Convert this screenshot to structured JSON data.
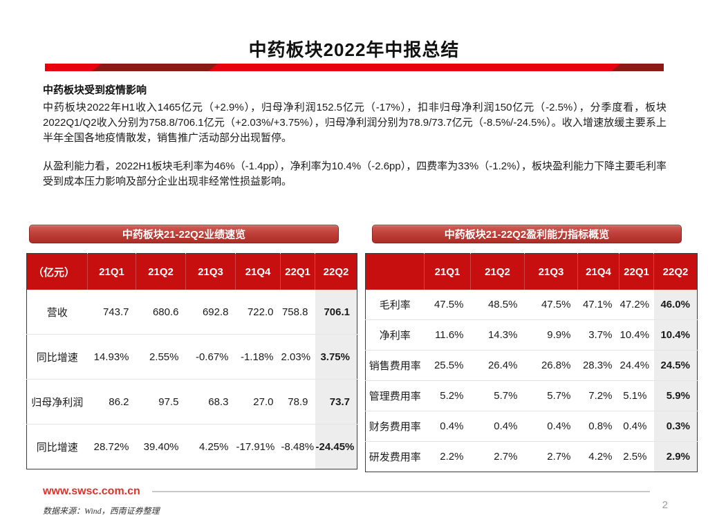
{
  "page": {
    "title": "中药板块2022年中报总结",
    "page_number": "2"
  },
  "body": {
    "heading": "中药板块受到疫情影响",
    "paragraph1": "中药板块2022年H1收入1465亿元（+2.9%），归母净利润152.5亿元（-17%），扣非归母净利润150亿元（-2.5%），分季度看，板块2022Q1/Q2收入分别为758.8/706.1亿元（+2.03%/+3.75%），归母净利润分别为78.9/73.7亿元（-8.5%/-24.5%）。收入增速放缓主要系上半年全国各地疫情散发，销售推广活动部分出现暂停。",
    "paragraph2": "从盈利能力看，2022H1板块毛利率为46%（-1.4pp），净利率为10.4%（-2.6pp），四费率为33%（-1.2%），板块盈利能力下降主要毛利率受到成本压力影响及部分企业出现非经常性损益影响。"
  },
  "left_panel": {
    "button_label": "中药板块21-22Q2业绩速览",
    "table": {
      "header": [
        "（亿元）",
        "21Q1",
        "21Q2",
        "21Q3",
        "21Q4",
        "22Q1",
        "22Q2"
      ],
      "rows": [
        {
          "label": "营收",
          "values": [
            "743.7",
            "680.6",
            "692.8",
            "722.0",
            "758.8",
            "706.1"
          ]
        },
        {
          "label": "同比增速",
          "values": [
            "14.93%",
            "2.55%",
            "-0.67%",
            "-1.18%",
            "2.03%",
            "3.75%"
          ]
        },
        {
          "label": "归母净利润",
          "values": [
            "86.2",
            "97.5",
            "68.3",
            "27.0",
            "78.9",
            "73.7"
          ]
        },
        {
          "label": "同比增速",
          "values": [
            "28.72%",
            "39.40%",
            "4.25%",
            "-17.91%",
            "-8.48%",
            "-24.45%"
          ]
        }
      ]
    }
  },
  "right_panel": {
    "button_label": "中药板块21-22Q2盈利能力指标概览",
    "table": {
      "header": [
        "",
        "21Q1",
        "21Q2",
        "21Q3",
        "21Q4",
        "22Q1",
        "22Q2"
      ],
      "rows": [
        {
          "label": "毛利率",
          "values": [
            "47.5%",
            "48.5%",
            "47.5%",
            "47.1%",
            "47.2%",
            "46.0%"
          ]
        },
        {
          "label": "净利率",
          "values": [
            "11.6%",
            "14.3%",
            "9.9%",
            "3.7%",
            "10.4%",
            "10.4%"
          ]
        },
        {
          "label": "销售费用率",
          "values": [
            "25.5%",
            "26.4%",
            "26.8%",
            "28.3%",
            "24.4%",
            "24.5%"
          ]
        },
        {
          "label": "管理费用率",
          "values": [
            "5.2%",
            "5.7%",
            "5.7%",
            "7.2%",
            "5.1%",
            "5.9%"
          ]
        },
        {
          "label": "财务费用率",
          "values": [
            "0.4%",
            "0.4%",
            "0.4%",
            "0.8%",
            "0.4%",
            "0.3%"
          ]
        },
        {
          "label": "研发费用率",
          "values": [
            "2.2%",
            "2.7%",
            "2.7%",
            "4.2%",
            "2.5%",
            "2.9%"
          ]
        }
      ]
    }
  },
  "footer": {
    "website": "www.swsc.com.cn",
    "source_note": "数据来源：Wind，西南证券整理"
  },
  "colors": {
    "table_header_red": "#c80f0f",
    "divider_red": "#e7000e",
    "divider_dark_red": "#8c1a13",
    "button_red_top": "#d0605a",
    "button_red_bottom": "#ad2d26",
    "website_red": "#d9342b",
    "highlight_column_bg": "#ededed"
  }
}
